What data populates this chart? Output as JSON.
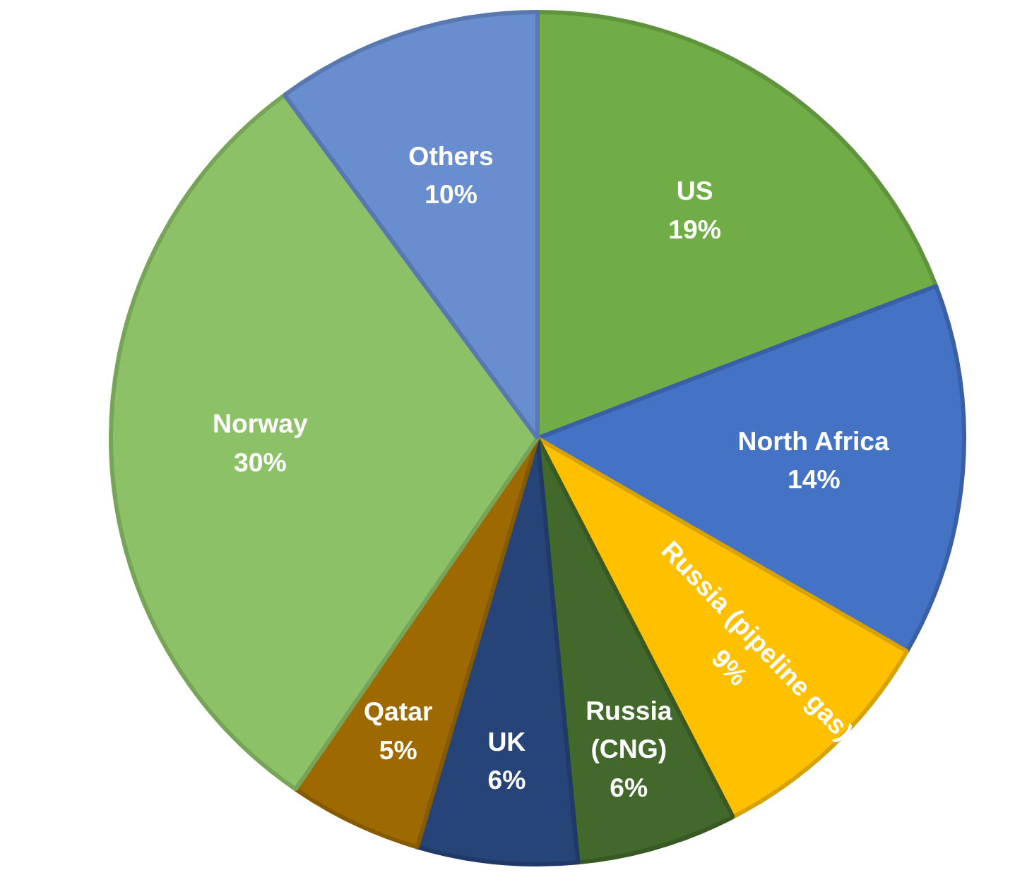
{
  "chart_data": {
    "type": "pie",
    "categories": [
      "US",
      "North Africa",
      "Russia (pipeline gas)",
      "Russia (CNG)",
      "UK",
      "Qatar",
      "Norway",
      "Others"
    ],
    "values": [
      19,
      14,
      9,
      6,
      6,
      5,
      30,
      10
    ],
    "value_labels": [
      "19%",
      "14%",
      "9%",
      "6%",
      "6%",
      "5%",
      "30%",
      "10%"
    ],
    "colors": [
      "#70ad47",
      "#4472c4",
      "#ffc000",
      "#43682b",
      "#264478",
      "#9e6a00",
      "#8cc168",
      "#698ed0"
    ]
  }
}
